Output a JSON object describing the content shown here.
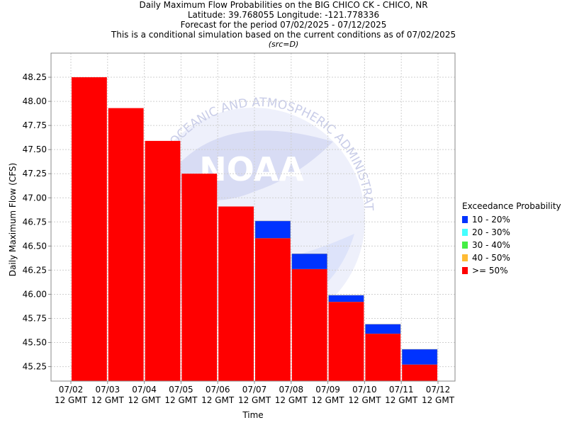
{
  "chart_data": {
    "type": "bar",
    "title_lines": [
      "Daily Maximum Flow Probabilities on the BIG CHICO CK - CHICO, NR",
      "Latitude: 39.768055 Longitude: -121.778336",
      "Forecast for the period 07/02/2025 - 07/12/2025",
      "This is a conditional simulation based on the current conditions as of 07/02/2025"
    ],
    "subtitle": "(src=D)",
    "xlabel": "Time",
    "ylabel": "Daily Maximum Flow (CFS)",
    "ylim": [
      45.1,
      48.5
    ],
    "yticks": [
      "45.25",
      "45.50",
      "45.75",
      "46.00",
      "46.25",
      "46.50",
      "46.75",
      "47.00",
      "47.25",
      "47.50",
      "47.75",
      "48.00",
      "48.25"
    ],
    "xtick_dates": [
      "07/02",
      "07/03",
      "07/04",
      "07/05",
      "07/06",
      "07/07",
      "07/08",
      "07/09",
      "07/10",
      "07/11",
      "07/12"
    ],
    "xtick_suffix": "12 GMT",
    "grid": true,
    "legend_position": "right",
    "legend_title": "Exceedance Probability",
    "legend": [
      {
        "label": "10 - 20%",
        "color": "#0033ff"
      },
      {
        "label": "20 - 30%",
        "color": "#44ffff"
      },
      {
        "label": "30 - 40%",
        "color": "#44ee44"
      },
      {
        "label": "40 - 50%",
        "color": "#ffbb33"
      },
      {
        "label": ">= 50%",
        "color": "#ff0000"
      }
    ],
    "series": [
      {
        "name": ">= 50%",
        "color": "#ff0000",
        "values": [
          48.25,
          47.93,
          47.59,
          47.25,
          46.91,
          46.58,
          46.26,
          45.92,
          45.59,
          45.27
        ]
      },
      {
        "name": "10 - 20%",
        "color": "#0033ff",
        "values": [
          48.25,
          47.93,
          47.59,
          47.25,
          46.91,
          46.76,
          46.42,
          45.99,
          45.69,
          45.43
        ]
      }
    ],
    "watermark": {
      "logo_text": "NOAA",
      "arc_text": "NATIONAL OCEANIC AND ATMOSPHERIC ADMINISTRATION"
    }
  }
}
